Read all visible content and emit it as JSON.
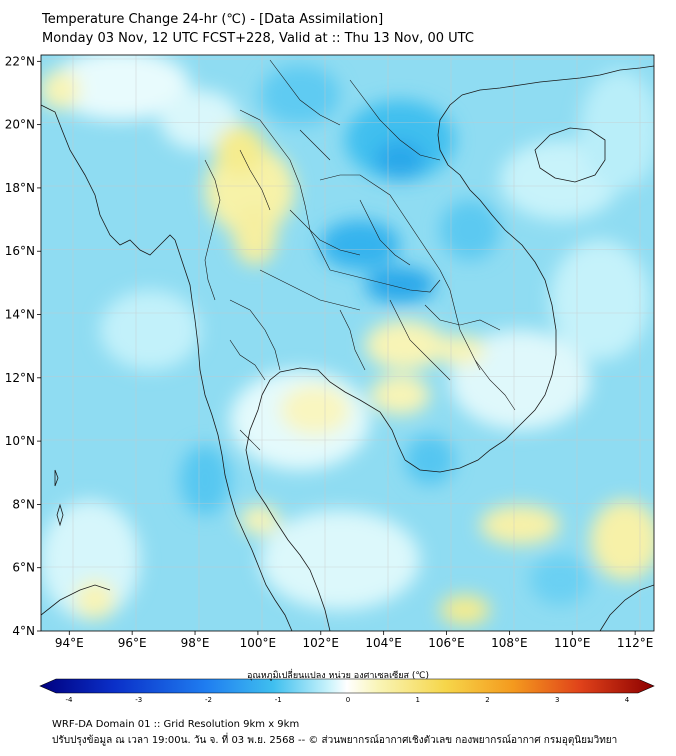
{
  "header": {
    "title_line1": "Temperature Change 24-hr (℃) - [Data Assimilation]",
    "title_line2": "Monday 03 Nov, 12 UTC FCST+228, Valid at :: Thu 13 Nov, 00 UTC"
  },
  "map": {
    "lat_labels": [
      "22°N",
      "20°N",
      "18°N",
      "16°N",
      "14°N",
      "12°N",
      "10°N",
      "8°N",
      "6°N",
      "4°N"
    ],
    "lon_labels": [
      "94°E",
      "96°E",
      "98°E",
      "100°E",
      "102°E",
      "104°E",
      "106°E",
      "108°E",
      "110°E",
      "112°E"
    ],
    "lat_values": [
      22,
      20,
      18,
      16,
      14,
      12,
      10,
      8,
      6,
      4
    ],
    "lon_values": [
      94,
      96,
      98,
      100,
      102,
      104,
      106,
      108,
      110,
      112
    ],
    "lat_range": [
      4,
      22.2
    ],
    "lon_range": [
      93.1,
      112.6
    ]
  },
  "colorbar": {
    "label": "อุณหภูมิเปลี่ยนแปลง หน่วย องศาเซลเซียส (℃)",
    "ticks": [
      "-4",
      "-3",
      "-2",
      "-1",
      "0",
      "1",
      "2",
      "3",
      "4"
    ],
    "tick_values": [
      -4,
      -3,
      -2,
      -1,
      0,
      1,
      2,
      3,
      4
    ],
    "range": [
      -4,
      4
    ],
    "colors": [
      "#00007f",
      "#0a2fc8",
      "#1f7df0",
      "#3fbfef",
      "#c9f3fb",
      "#ffffff",
      "#f9f5b8",
      "#f6d64a",
      "#f49a1e",
      "#e0421a",
      "#8c0000"
    ]
  },
  "footer": {
    "line1": "WRF-DA Domain 01 :: Grid Resolution 9km x 9km",
    "line2": "ปรับปรุงข้อมูล ณ เวลา 19:00น. วัน จ. ที่ 03 พ.ย. 2568 -- © ส่วนพยากรณ์อากาศเชิงตัวเลข กองพยากรณ์อากาศ กรมอุตุนิยมวิทยา"
  }
}
